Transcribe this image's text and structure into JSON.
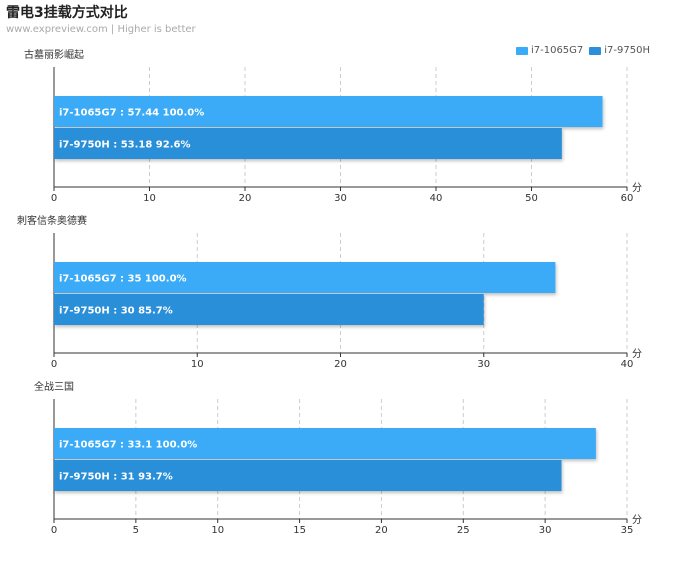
{
  "header": {
    "title": "雷电3挂载方式对比",
    "subtitle": "www.expreview.com | Higher is better"
  },
  "legend": [
    {
      "label": "i7-1065G7",
      "color": "#3aabf7"
    },
    {
      "label": "i7-9750H",
      "color": "#2b8fd9"
    }
  ],
  "colors": {
    "series1": "#3aabf7",
    "series2": "#2b8fd9"
  },
  "chart_data": [
    {
      "type": "bar",
      "title": "古墓丽影崛起",
      "categories": [
        "i7-1065G7",
        "i7-9750H"
      ],
      "values": [
        57.44,
        53.18
      ],
      "percent_labels": [
        "100.0%",
        "92.6%"
      ],
      "xlim": [
        0,
        60
      ],
      "ticks": [
        "0",
        "10",
        "20",
        "30",
        "40",
        "50",
        "60"
      ],
      "unit": "分"
    },
    {
      "type": "bar",
      "title": "刺客信条奥德赛",
      "categories": [
        "i7-1065G7",
        "i7-9750H"
      ],
      "values": [
        35,
        30
      ],
      "percent_labels": [
        "100.0%",
        "85.7%"
      ],
      "xlim": [
        0,
        40
      ],
      "ticks": [
        "0",
        "10",
        "20",
        "30",
        "40"
      ],
      "unit": "分"
    },
    {
      "type": "bar",
      "title": "全战三国",
      "categories": [
        "i7-1065G7",
        "i7-9750H"
      ],
      "values": [
        33.1,
        31
      ],
      "percent_labels": [
        "100.0%",
        "93.7%"
      ],
      "xlim": [
        0,
        35
      ],
      "ticks": [
        "0",
        "5",
        "10",
        "15",
        "20",
        "25",
        "30",
        "35"
      ],
      "unit": "分"
    }
  ]
}
